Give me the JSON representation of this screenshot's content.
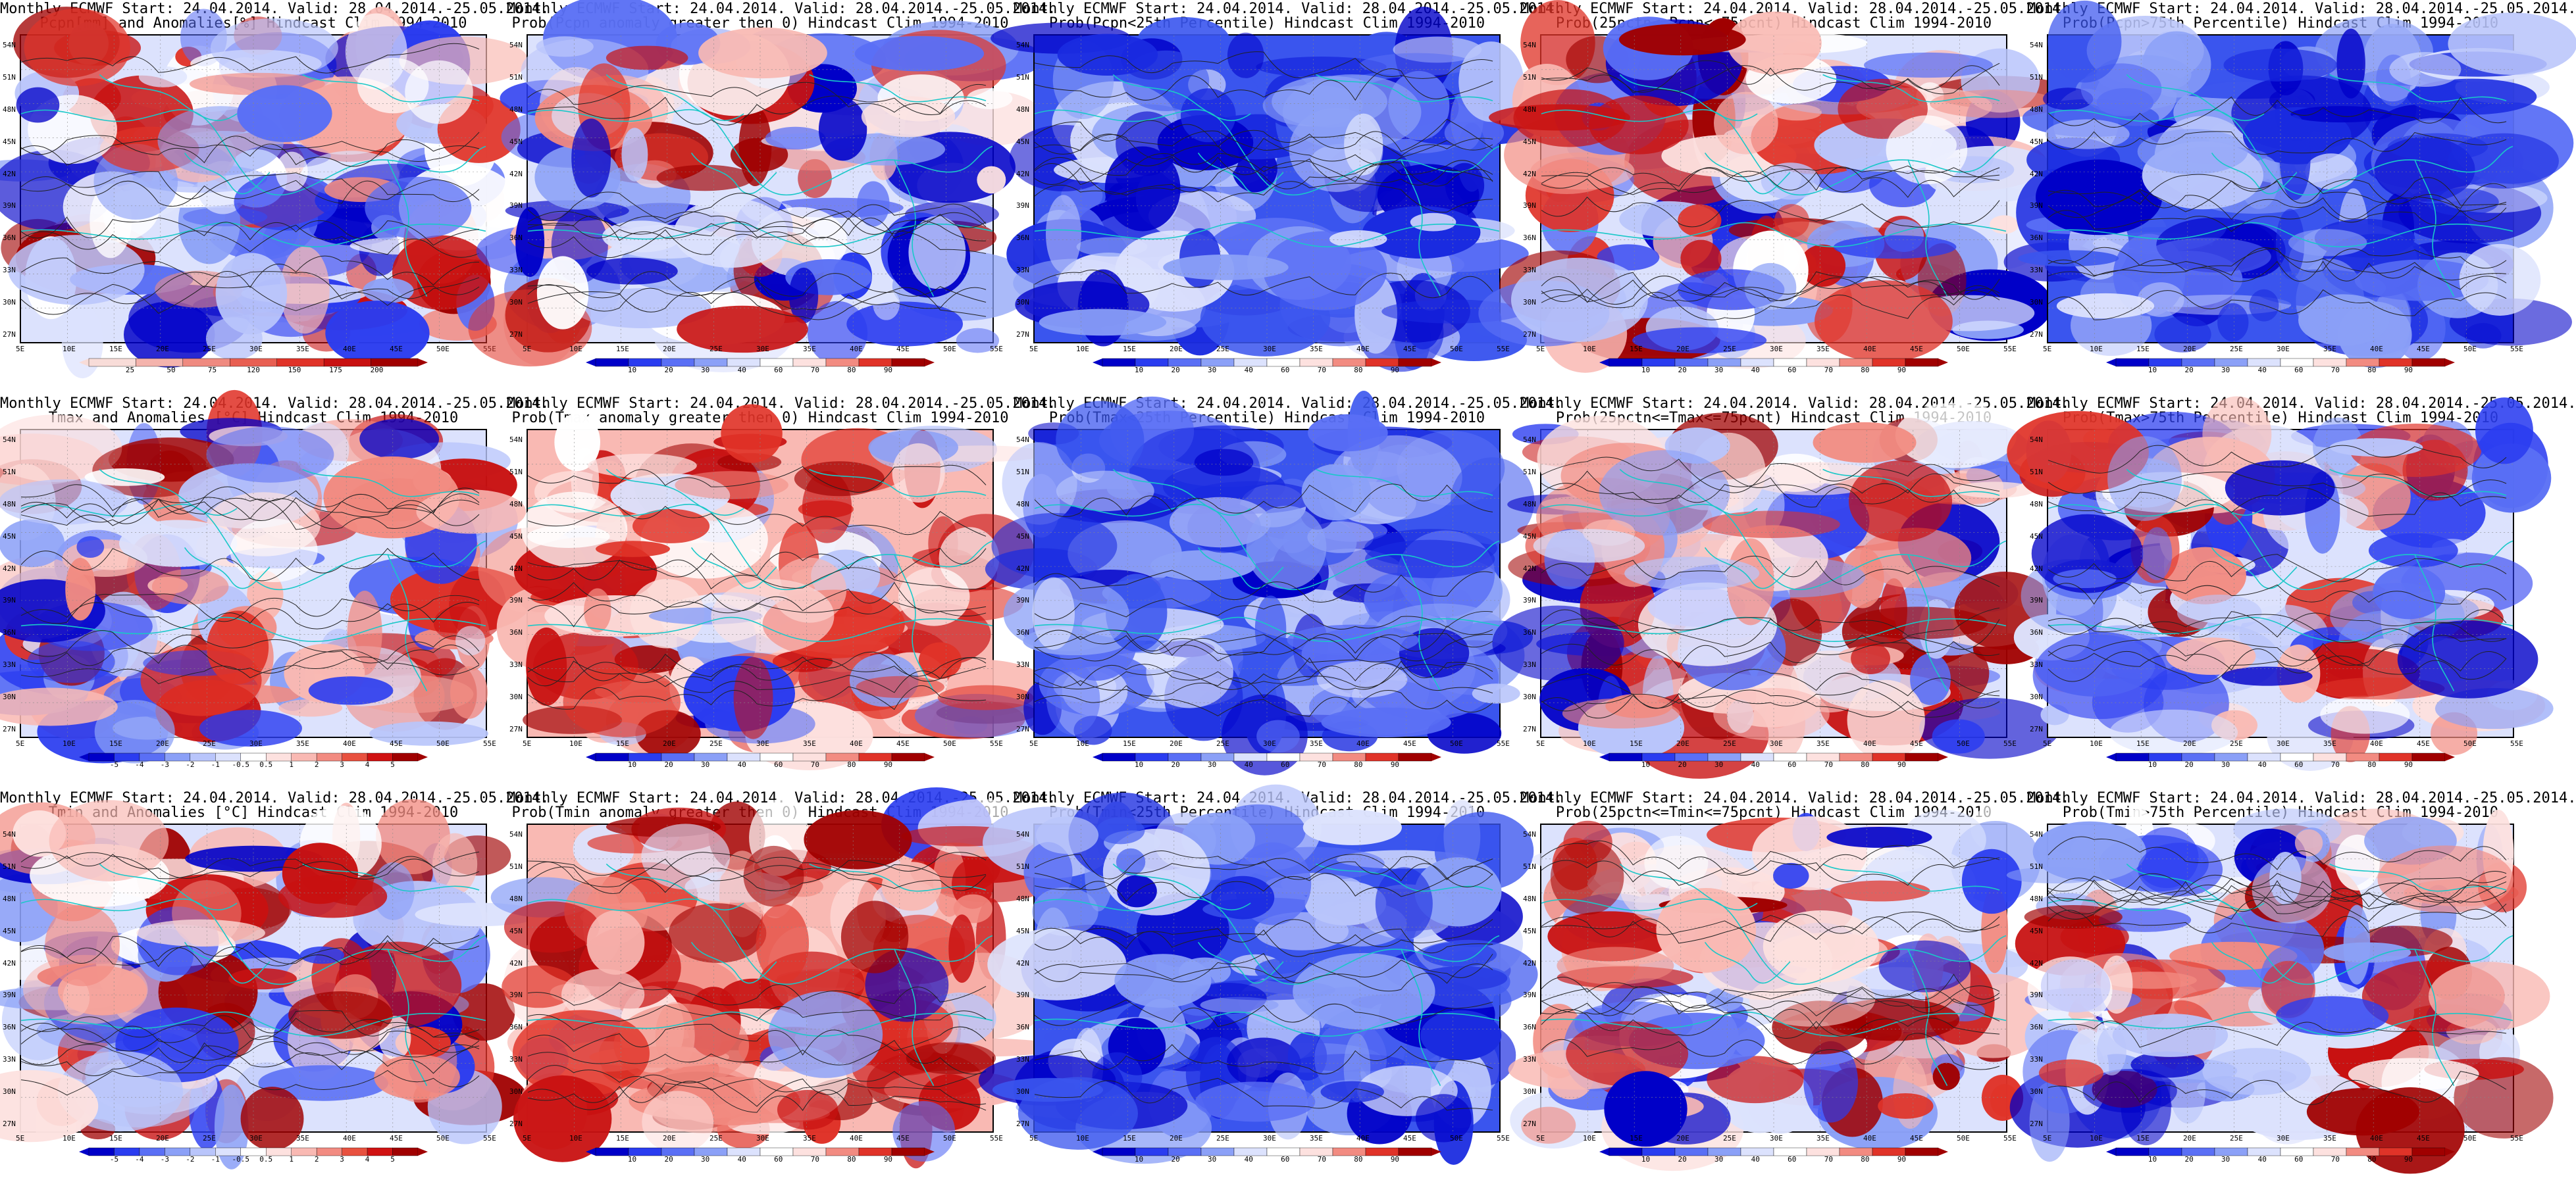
{
  "columns": 5,
  "rows": 3,
  "axes": {
    "lat_ticks": [
      "54N",
      "51N",
      "48N",
      "45N",
      "42N",
      "39N",
      "36N",
      "33N",
      "30N",
      "27N"
    ],
    "lon_ticks": [
      "5E",
      "10E",
      "15E",
      "20E",
      "25E",
      "30E",
      "35E",
      "40E",
      "45E",
      "50E",
      "55E"
    ]
  },
  "colorbars": {
    "pcpn_anom": {
      "labels": [
        "25",
        "50",
        "75",
        "120",
        "150",
        "175",
        "200"
      ],
      "colors": [
        "#f8dcd8",
        "#f4b3ac",
        "#ef8a80",
        "#e85f52",
        "#e03328",
        "#c81111",
        "#a00000"
      ]
    },
    "temp_anom": {
      "labels": [
        "-5",
        "-4",
        "-3",
        "-2",
        "-1",
        "-0.5",
        "0.5",
        "1",
        "2",
        "3",
        "4",
        "5"
      ],
      "colors": [
        "#0000c8",
        "#2a3cf0",
        "#5a6ff5",
        "#8ba0f7",
        "#b9c5fb",
        "#dce2fd",
        "#ffffff",
        "#fde1df",
        "#f9b9b3",
        "#f28b81",
        "#e8513f",
        "#d01212",
        "#a00000"
      ]
    },
    "prob": {
      "labels": [
        "10",
        "20",
        "30",
        "40",
        "60",
        "70",
        "80",
        "90"
      ],
      "colors": [
        "#0000c8",
        "#2a3cf0",
        "#5a6ff5",
        "#8ba0f7",
        "#dce2fd",
        "#ffffff",
        "#fde1df",
        "#f28b81",
        "#e03328",
        "#a00000"
      ]
    }
  },
  "panels": [
    {
      "line1": "Monthly ECMWF Start: 24.04.2014. Valid: 28.04.2014.-25.05.2014.",
      "line2": "Pcpn[mm] and Anomalies[%] Hindcast Clim 1994-2010",
      "palette": "mix",
      "seed": 11,
      "warm": 0.35,
      "colorbar": "pcpn_anom"
    },
    {
      "line1": "Monthly ECMWF Start: 24.04.2014. Valid: 28.04.2014.-25.05.2014.",
      "line2": "Prob(Pcpn anomaly greater then 0) Hindcast Clim 1994-2010",
      "palette": "mix",
      "seed": 23,
      "warm": 0.3,
      "colorbar": "prob"
    },
    {
      "line1": "Monthly ECMWF Start: 24.04.2014. Valid: 28.04.2014.-25.05.2014.",
      "line2": "Prob(Pcpn<25th Percentile) Hindcast Clim 1994-2010",
      "palette": "blue",
      "seed": 37,
      "warm": 0.05,
      "colorbar": "prob"
    },
    {
      "line1": "Monthly ECMWF Start: 24.04.2014. Valid: 28.04.2014.-25.05.2014.",
      "line2": "Prob(25pctn<=Pcpn<=75pcnt) Hindcast Clim 1994-2010",
      "palette": "mix",
      "seed": 41,
      "warm": 0.5,
      "colorbar": "prob"
    },
    {
      "line1": "Monthly ECMWF Start: 24.04.2014. Valid: 28.04.2014.-25.05.2014.",
      "line2": "Prob(Pcpn>75th Percentile) Hindcast Clim 1994-2010",
      "palette": "blue",
      "seed": 53,
      "warm": 0.05,
      "colorbar": "prob"
    },
    {
      "line1": "Monthly ECMWF Start: 24.04.2014. Valid: 28.04.2014.-25.05.2014.",
      "line2": "Tmax and Anomalies [°C] Hindcast Clim 1994-2010",
      "palette": "warm",
      "seed": 61,
      "warm": 0.55,
      "colorbar": "temp_anom"
    },
    {
      "line1": "Monthly ECMWF Start: 24.04.2014. Valid: 28.04.2014.-25.05.2014.",
      "line2": "Prob(Tmax anomaly greater then 0) Hindcast Clim 1994-2010",
      "palette": "hot",
      "seed": 71,
      "warm": 0.7,
      "colorbar": "prob"
    },
    {
      "line1": "Monthly ECMWF Start: 24.04.2014. Valid: 28.04.2014.-25.05.2014.",
      "line2": "Prob(Tmax<25th Percentile) Hindcast Clim 1994-2010",
      "palette": "blue",
      "seed": 83,
      "warm": 0.0,
      "colorbar": "prob"
    },
    {
      "line1": "Monthly ECMWF Start: 24.04.2014. Valid: 28.04.2014.-25.05.2014.",
      "line2": "Prob(25pctn<=Tmax<=75pcnt) Hindcast Clim 1994-2010",
      "palette": "mix",
      "seed": 97,
      "warm": 0.55,
      "colorbar": "prob"
    },
    {
      "line1": "Monthly ECMWF Start: 24.04.2014. Valid: 28.04.2014.-25.05.2014.",
      "line2": "Prob(Tmax>75th Percentile) Hindcast Clim 1994-2010",
      "palette": "mix",
      "seed": 101,
      "warm": 0.3,
      "colorbar": "prob"
    },
    {
      "line1": "Monthly ECMWF Start: 24.04.2014. Valid: 28.04.2014.-25.05.2014.",
      "line2": "Tmin and Anomalies [°C] Hindcast Clim 1994-2010",
      "palette": "warm",
      "seed": 113,
      "warm": 0.5,
      "colorbar": "temp_anom"
    },
    {
      "line1": "Monthly ECMWF Start: 24.04.2014. Valid: 28.04.2014.-25.05.2014.",
      "line2": "Prob(Tmin anomaly greater then 0) Hindcast Clim 1994-2010",
      "palette": "hot",
      "seed": 127,
      "warm": 0.75,
      "colorbar": "prob"
    },
    {
      "line1": "Monthly ECMWF Start: 24.04.2014. Valid: 28.04.2014.-25.05.2014.",
      "line2": "Prob(Tmin<25th Percentile) Hindcast Clim 1994-2010",
      "palette": "blue",
      "seed": 131,
      "warm": 0.0,
      "colorbar": "prob"
    },
    {
      "line1": "Monthly ECMWF Start: 24.04.2014. Valid: 28.04.2014.-25.05.2014.",
      "line2": "Prob(25pctn<=Tmin<=75pcnt) Hindcast Clim 1994-2010",
      "palette": "mix",
      "seed": 149,
      "warm": 0.55,
      "colorbar": "prob"
    },
    {
      "line1": "Monthly ECMWF Start: 24.04.2014. Valid: 28.04.2014.-25.05.2014.",
      "line2": "Prob(Tmin>75th Percentile) Hindcast Clim 1994-2010",
      "palette": "mix",
      "seed": 157,
      "warm": 0.4,
      "colorbar": "prob"
    }
  ]
}
